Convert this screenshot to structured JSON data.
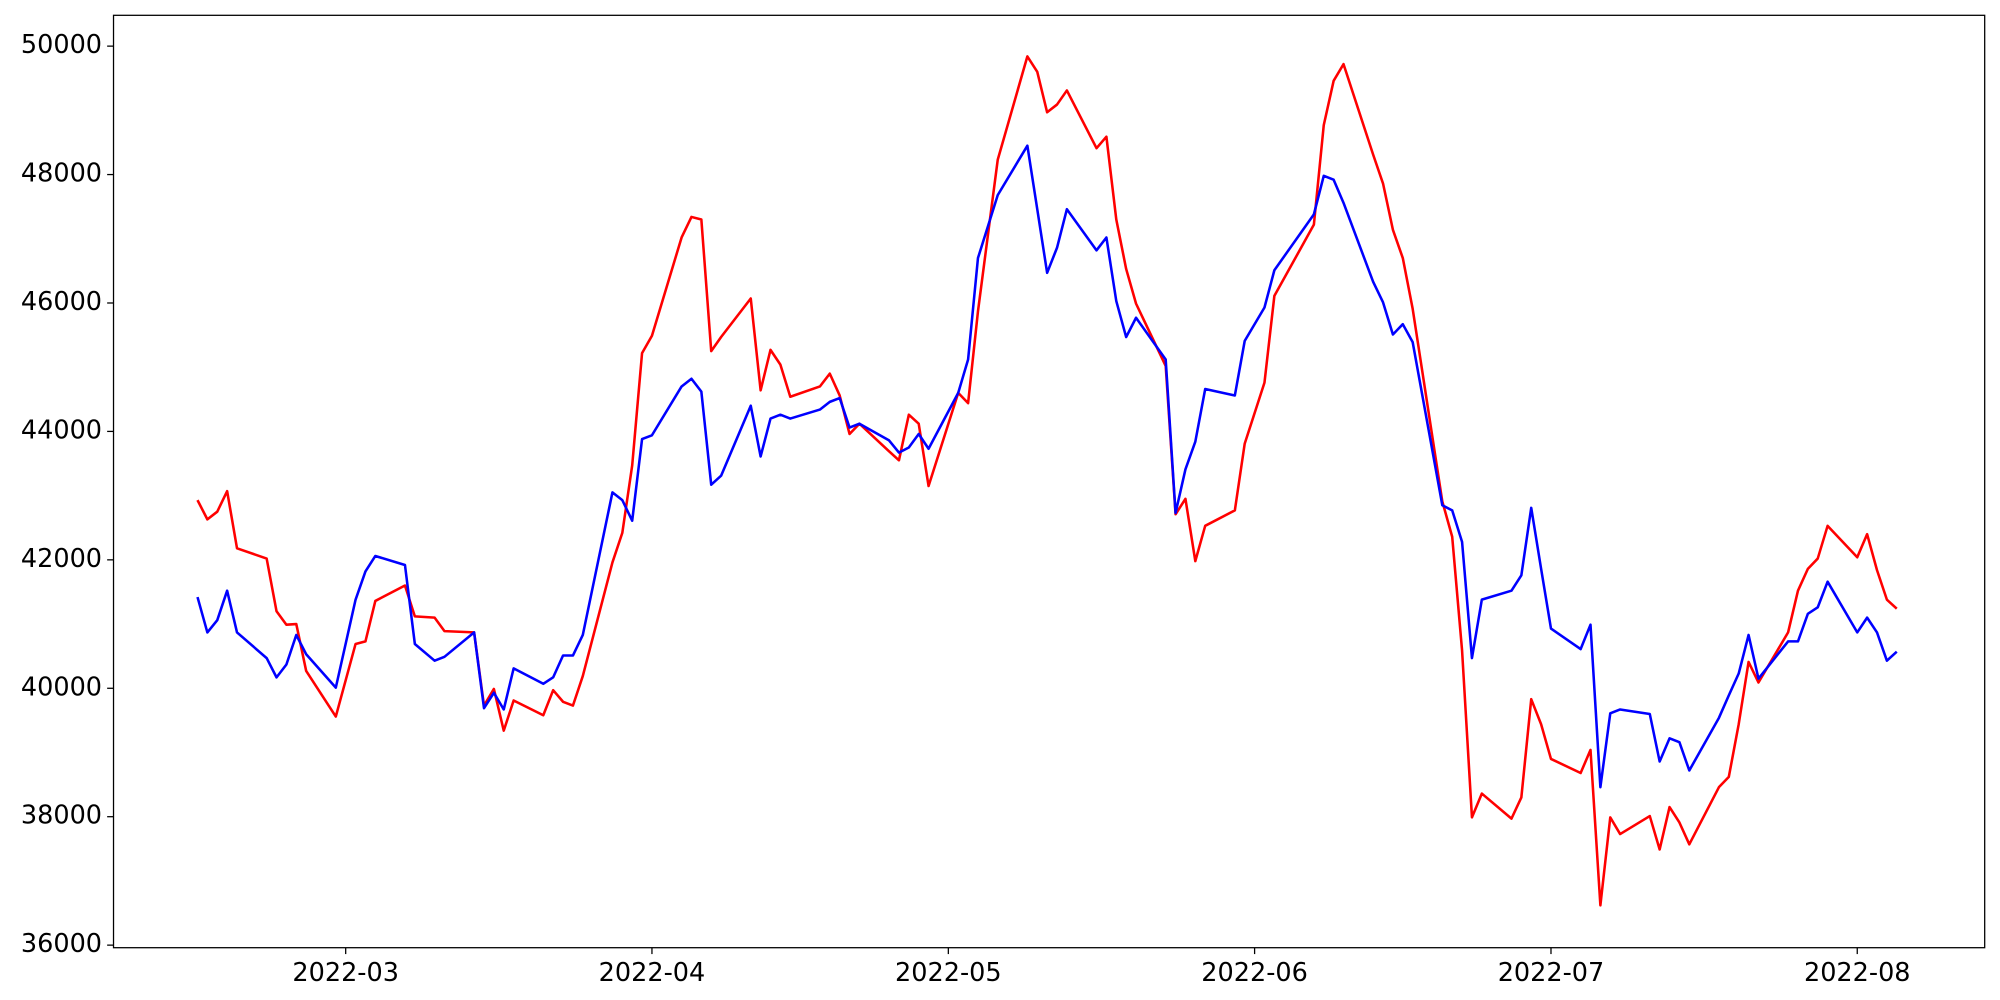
{
  "chart_data": {
    "type": "line",
    "x": [
      45,
      46,
      47,
      48,
      49,
      52,
      53,
      54,
      55,
      56,
      59,
      61,
      62,
      63,
      66,
      67,
      69,
      70,
      73,
      74,
      75,
      76,
      77,
      80,
      81,
      82,
      83,
      84,
      87,
      88,
      89,
      90,
      91,
      94,
      95,
      96,
      97,
      98,
      101,
      102,
      103,
      104,
      105,
      108,
      109,
      110,
      111,
      112,
      115,
      116,
      117,
      118,
      119,
      122,
      123,
      124,
      126,
      129,
      130,
      131,
      132,
      133,
      136,
      137,
      138,
      139,
      140,
      143,
      144,
      145,
      146,
      147,
      150,
      151,
      153,
      154,
      158,
      159,
      160,
      161,
      164,
      165,
      166,
      167,
      168,
      171,
      172,
      173,
      174,
      175,
      178,
      179,
      180,
      181,
      182,
      185,
      186,
      187,
      188,
      189,
      192,
      193,
      194,
      195,
      196,
      199,
      200,
      201,
      202,
      203,
      206,
      207,
      208,
      209,
      210,
      213,
      214,
      215,
      216,
      217
    ],
    "series": [
      {
        "color": "#ff0000",
        "values": [
          42930,
          42630,
          42750,
          43070,
          42180,
          42020,
          41200,
          40990,
          41000,
          40270,
          39560,
          40690,
          40730,
          41360,
          41600,
          41120,
          41100,
          40890,
          40870,
          39730,
          39990,
          39340,
          39810,
          39580,
          39970,
          39790,
          39730,
          40190,
          41960,
          42420,
          43470,
          45220,
          45490,
          47020,
          47340,
          47300,
          45250,
          45470,
          46070,
          44640,
          45270,
          45040,
          44540,
          44700,
          44900,
          44560,
          43960,
          44120,
          43690,
          43550,
          44260,
          44120,
          43150,
          44600,
          44440,
          45870,
          48230,
          49840,
          49600,
          48970,
          49090,
          49310,
          48410,
          48590,
          47300,
          46530,
          45990,
          45020,
          42710,
          42950,
          41980,
          42530,
          42770,
          43810,
          44760,
          46110,
          47220,
          48770,
          49460,
          49720,
          48310,
          47860,
          47140,
          46700,
          45910,
          42910,
          42360,
          40590,
          37990,
          38360,
          37970,
          38300,
          39830,
          39440,
          38900,
          38680,
          39040,
          36620,
          37990,
          37730,
          38010,
          37490,
          38150,
          37910,
          37570,
          38460,
          38620,
          39440,
          40410,
          40090,
          40870,
          41520,
          41860,
          42020,
          42530,
          42040,
          42400,
          41840,
          41380,
          41240
        ]
      },
      {
        "color": "#0000ff",
        "values": [
          41420,
          40870,
          41060,
          41520,
          40870,
          40470,
          40170,
          40370,
          40830,
          40530,
          40010,
          41380,
          41820,
          42060,
          41920,
          40690,
          40430,
          40490,
          40870,
          39690,
          39930,
          39670,
          40310,
          40070,
          40170,
          40510,
          40510,
          40830,
          43050,
          42930,
          42610,
          43880,
          43940,
          44700,
          44820,
          44620,
          43170,
          43310,
          44400,
          43610,
          44200,
          44260,
          44200,
          44340,
          44460,
          44520,
          44060,
          44120,
          43860,
          43670,
          43750,
          43960,
          43730,
          44600,
          45120,
          46700,
          47680,
          48450,
          47460,
          46470,
          46860,
          47460,
          46820,
          47020,
          46030,
          45470,
          45770,
          45120,
          42730,
          43410,
          43840,
          44660,
          44560,
          45410,
          45930,
          46510,
          47380,
          47980,
          47920,
          47560,
          46330,
          46010,
          45510,
          45670,
          45390,
          42850,
          42770,
          42280,
          40470,
          41380,
          41520,
          41760,
          42810,
          41860,
          40930,
          40610,
          40990,
          38460,
          39610,
          39670,
          39600,
          38860,
          39220,
          39160,
          38720,
          39540,
          39890,
          40230,
          40830,
          40150,
          40730,
          40730,
          41160,
          41260,
          41660,
          40870,
          41100,
          40870,
          40430,
          40570
        ]
      }
    ],
    "xlim": [
      36.5,
      225.9
    ],
    "xticks": [
      {
        "value": 60,
        "label": "2022-03"
      },
      {
        "value": 91,
        "label": "2022-04"
      },
      {
        "value": 121,
        "label": "2022-05"
      },
      {
        "value": 152,
        "label": "2022-06"
      },
      {
        "value": 182,
        "label": "2022-07"
      },
      {
        "value": 213,
        "label": "2022-08"
      }
    ],
    "ylim": [
      35960,
      50480
    ],
    "yticks": [
      36000,
      38000,
      40000,
      42000,
      44000,
      46000,
      48000,
      50000
    ]
  }
}
